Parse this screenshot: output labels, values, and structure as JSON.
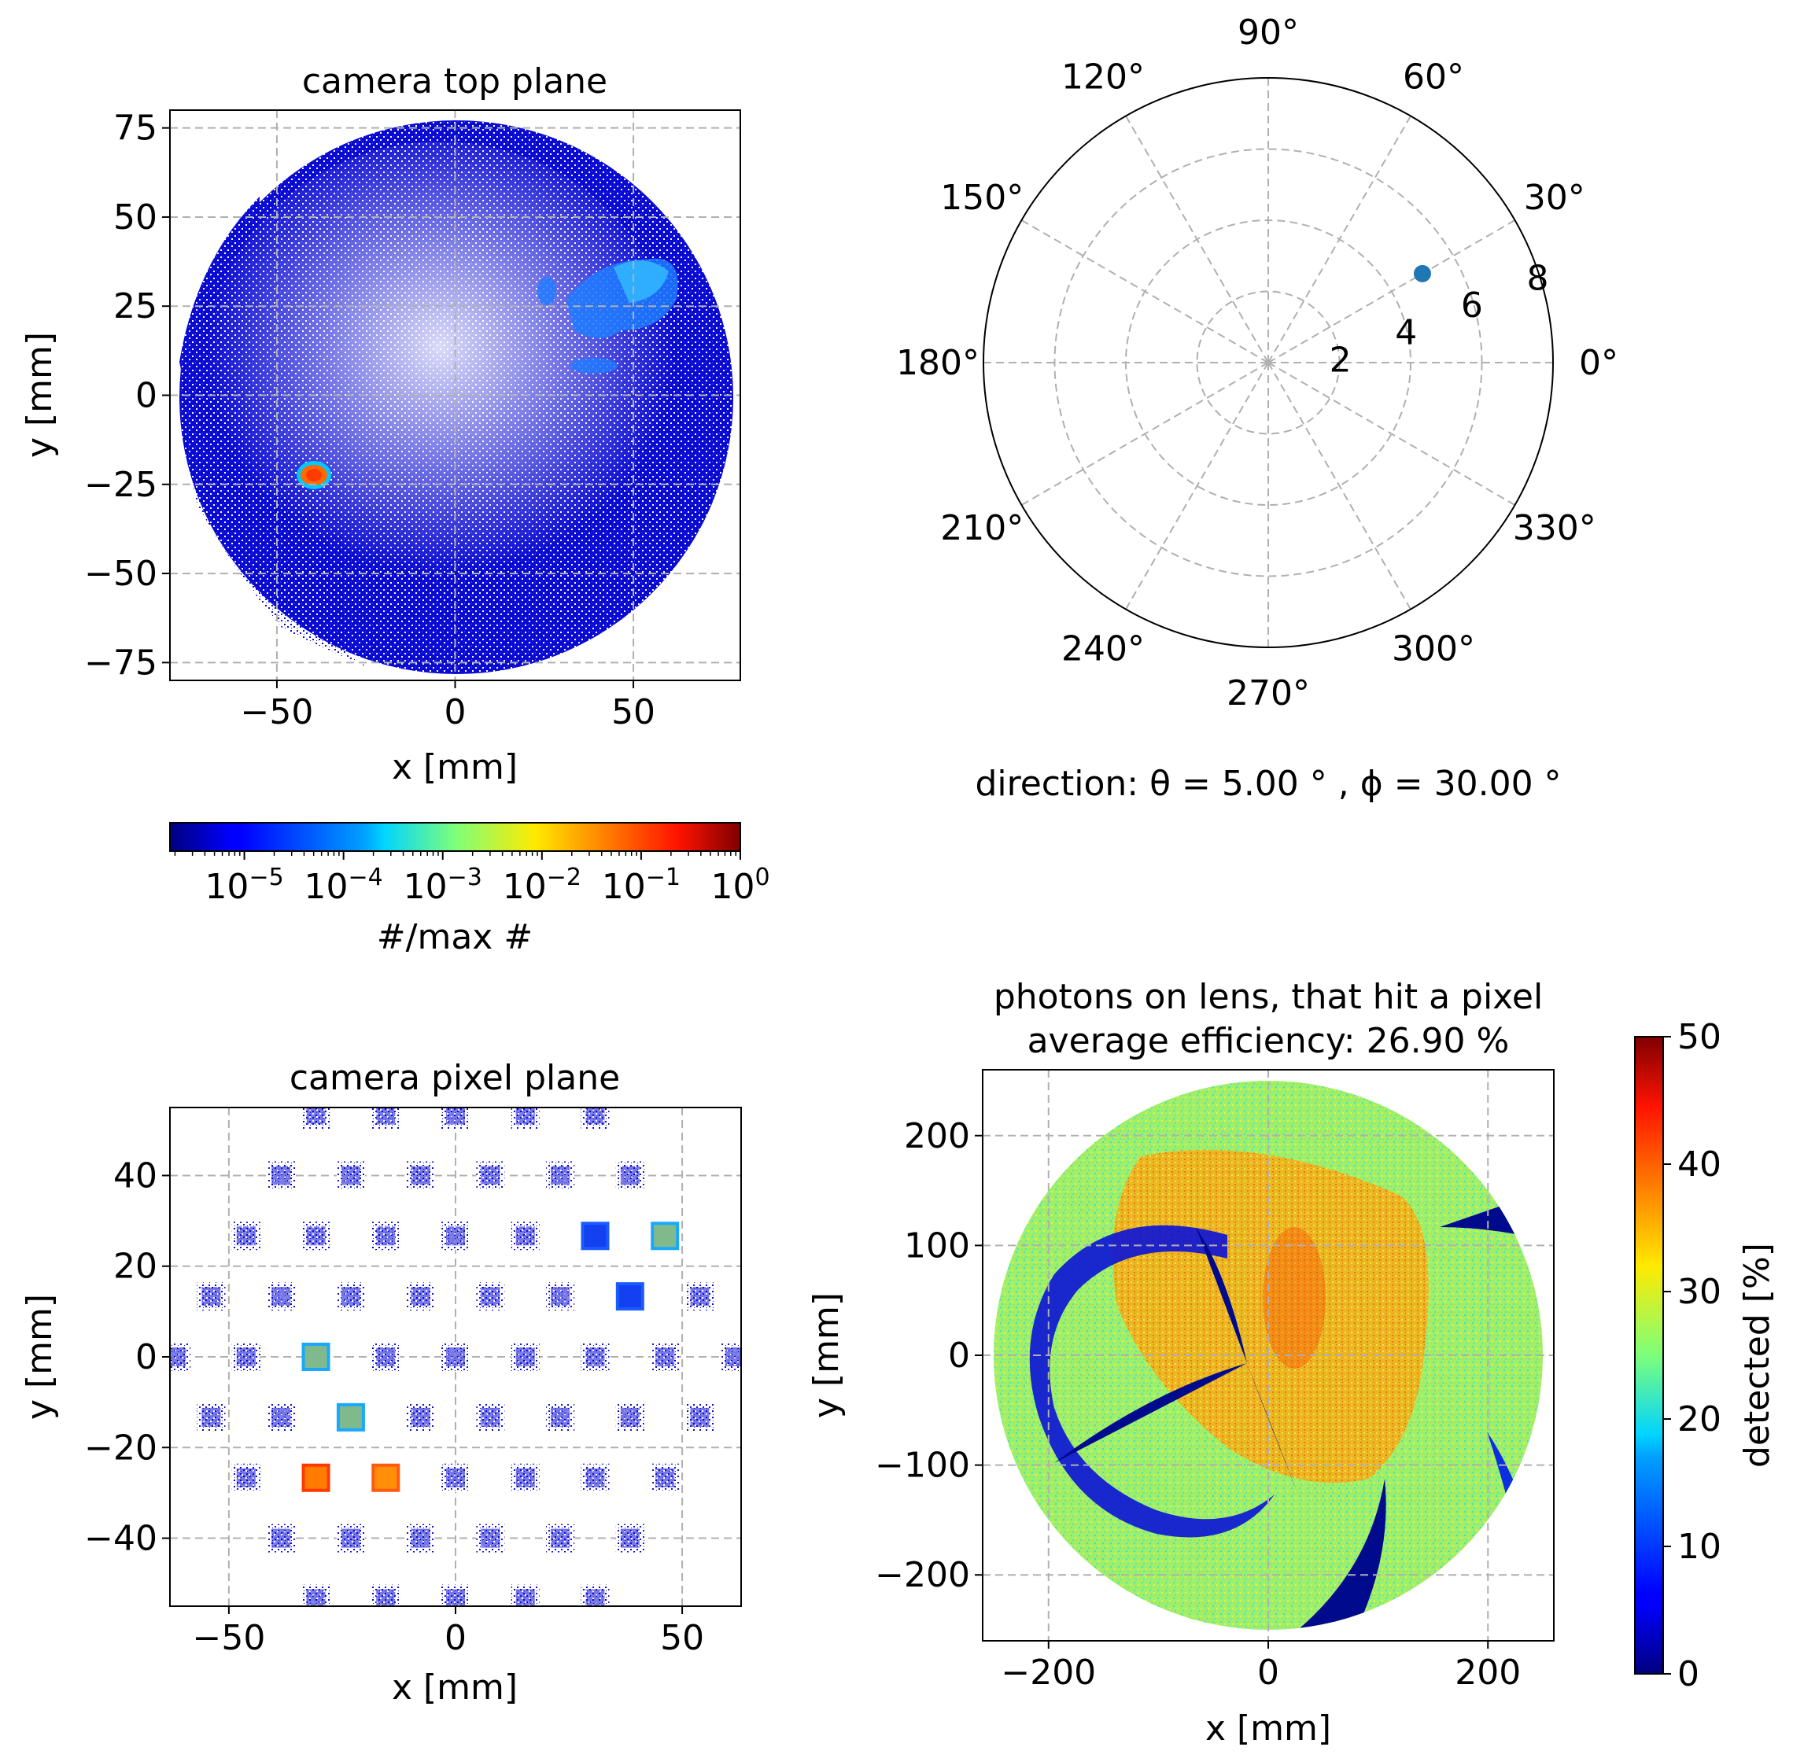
{
  "figure": {
    "direction_caption": "direction: θ = 5.00 ° , ϕ = 30.00 °",
    "colormap": "jet",
    "grid_color": "#b0b0b0"
  },
  "chart_data": [
    {
      "id": "top-plane",
      "type": "heatmap",
      "title": "camera top plane",
      "xlabel": "x [mm]",
      "ylabel": "y [mm]",
      "xlim": [
        -80,
        80
      ],
      "ylim": [
        -80,
        80
      ],
      "xticks": [
        "−50",
        "0",
        "50"
      ],
      "xtick_values": [
        -50,
        0,
        50
      ],
      "yticks": [
        "75",
        "50",
        "25",
        "0",
        "−25",
        "−50",
        "−75"
      ],
      "ytick_values": [
        75,
        50,
        25,
        0,
        -25,
        -50,
        -75
      ],
      "grid": true,
      "colorbar": {
        "orientation": "horizontal",
        "label": "#/max #",
        "scale": "log",
        "ticks": [
          "10−5",
          "10−4",
          "10−3",
          "10−2",
          "10−1",
          "100"
        ],
        "tick_values": [
          1e-05,
          0.0001,
          0.001,
          0.01,
          0.1,
          1
        ]
      },
      "hotspots": [
        {
          "x": -40,
          "y": -22,
          "level": "max"
        },
        {
          "x": 45,
          "y": 30,
          "level": "mid"
        }
      ]
    },
    {
      "id": "direction-polar",
      "type": "scatter",
      "projection": "polar",
      "angle_labels": [
        "0°",
        "30°",
        "60°",
        "90°",
        "120°",
        "150°",
        "180°",
        "210°",
        "240°",
        "270°",
        "300°",
        "330°"
      ],
      "angle_values": [
        0,
        30,
        60,
        90,
        120,
        150,
        180,
        210,
        240,
        270,
        300,
        330
      ],
      "radial_labels": [
        "2",
        "4",
        "6",
        "8"
      ],
      "radial_values": [
        2,
        4,
        6,
        8
      ],
      "rmax": 8,
      "points": [
        {
          "theta_deg": 30,
          "r": 5
        }
      ],
      "point_color": "#1f77b4",
      "grid": true
    },
    {
      "id": "pixel-plane",
      "type": "heatmap",
      "title": "camera pixel plane",
      "xlabel": "x [mm]",
      "ylabel": "y [mm]",
      "xlim": [
        -63,
        63
      ],
      "ylim": [
        -55,
        55
      ],
      "xticks": [
        "−50",
        "0",
        "50"
      ],
      "xtick_values": [
        -50,
        0,
        50
      ],
      "yticks": [
        "40",
        "20",
        "0",
        "−20",
        "−40"
      ],
      "ytick_values": [
        40,
        20,
        0,
        -20,
        -40
      ],
      "grid": true,
      "pixel_pitch_mm": 15.4,
      "hot_pixels": [
        {
          "row": 2,
          "col": 5,
          "level": "low"
        },
        {
          "row": 2,
          "col": 6,
          "level": "mid"
        },
        {
          "row": 3,
          "col": 6,
          "level": "low"
        },
        {
          "row": 4,
          "col": 2,
          "level": "mid"
        },
        {
          "row": 5,
          "col": 2,
          "level": "mid"
        },
        {
          "row": 6,
          "col": 1,
          "level": "max"
        },
        {
          "row": 6,
          "col": 2,
          "level": "high"
        }
      ]
    },
    {
      "id": "lens-efficiency",
      "type": "heatmap",
      "title": "photons on lens, that hit a pixel",
      "subtitle": "average efficiency: 26.90 %",
      "xlabel": "x [mm]",
      "ylabel": "y [mm]",
      "xlim": [
        -260,
        260
      ],
      "ylim": [
        -260,
        260
      ],
      "xticks": [
        "−200",
        "0",
        "200"
      ],
      "xtick_values": [
        -200,
        0,
        200
      ],
      "yticks": [
        "200",
        "100",
        "0",
        "−100",
        "−200"
      ],
      "ytick_values": [
        200,
        100,
        0,
        -100,
        -200
      ],
      "grid": true,
      "lens_radius_mm": 250,
      "average_efficiency_percent": 26.9,
      "colorbar": {
        "orientation": "vertical",
        "label": "detected [%]",
        "scale": "linear",
        "ticks": [
          "50",
          "40",
          "30",
          "20",
          "10",
          "0"
        ],
        "tick_values": [
          50,
          40,
          30,
          20,
          10,
          0
        ],
        "vmin": 0,
        "vmax": 50
      }
    }
  ]
}
